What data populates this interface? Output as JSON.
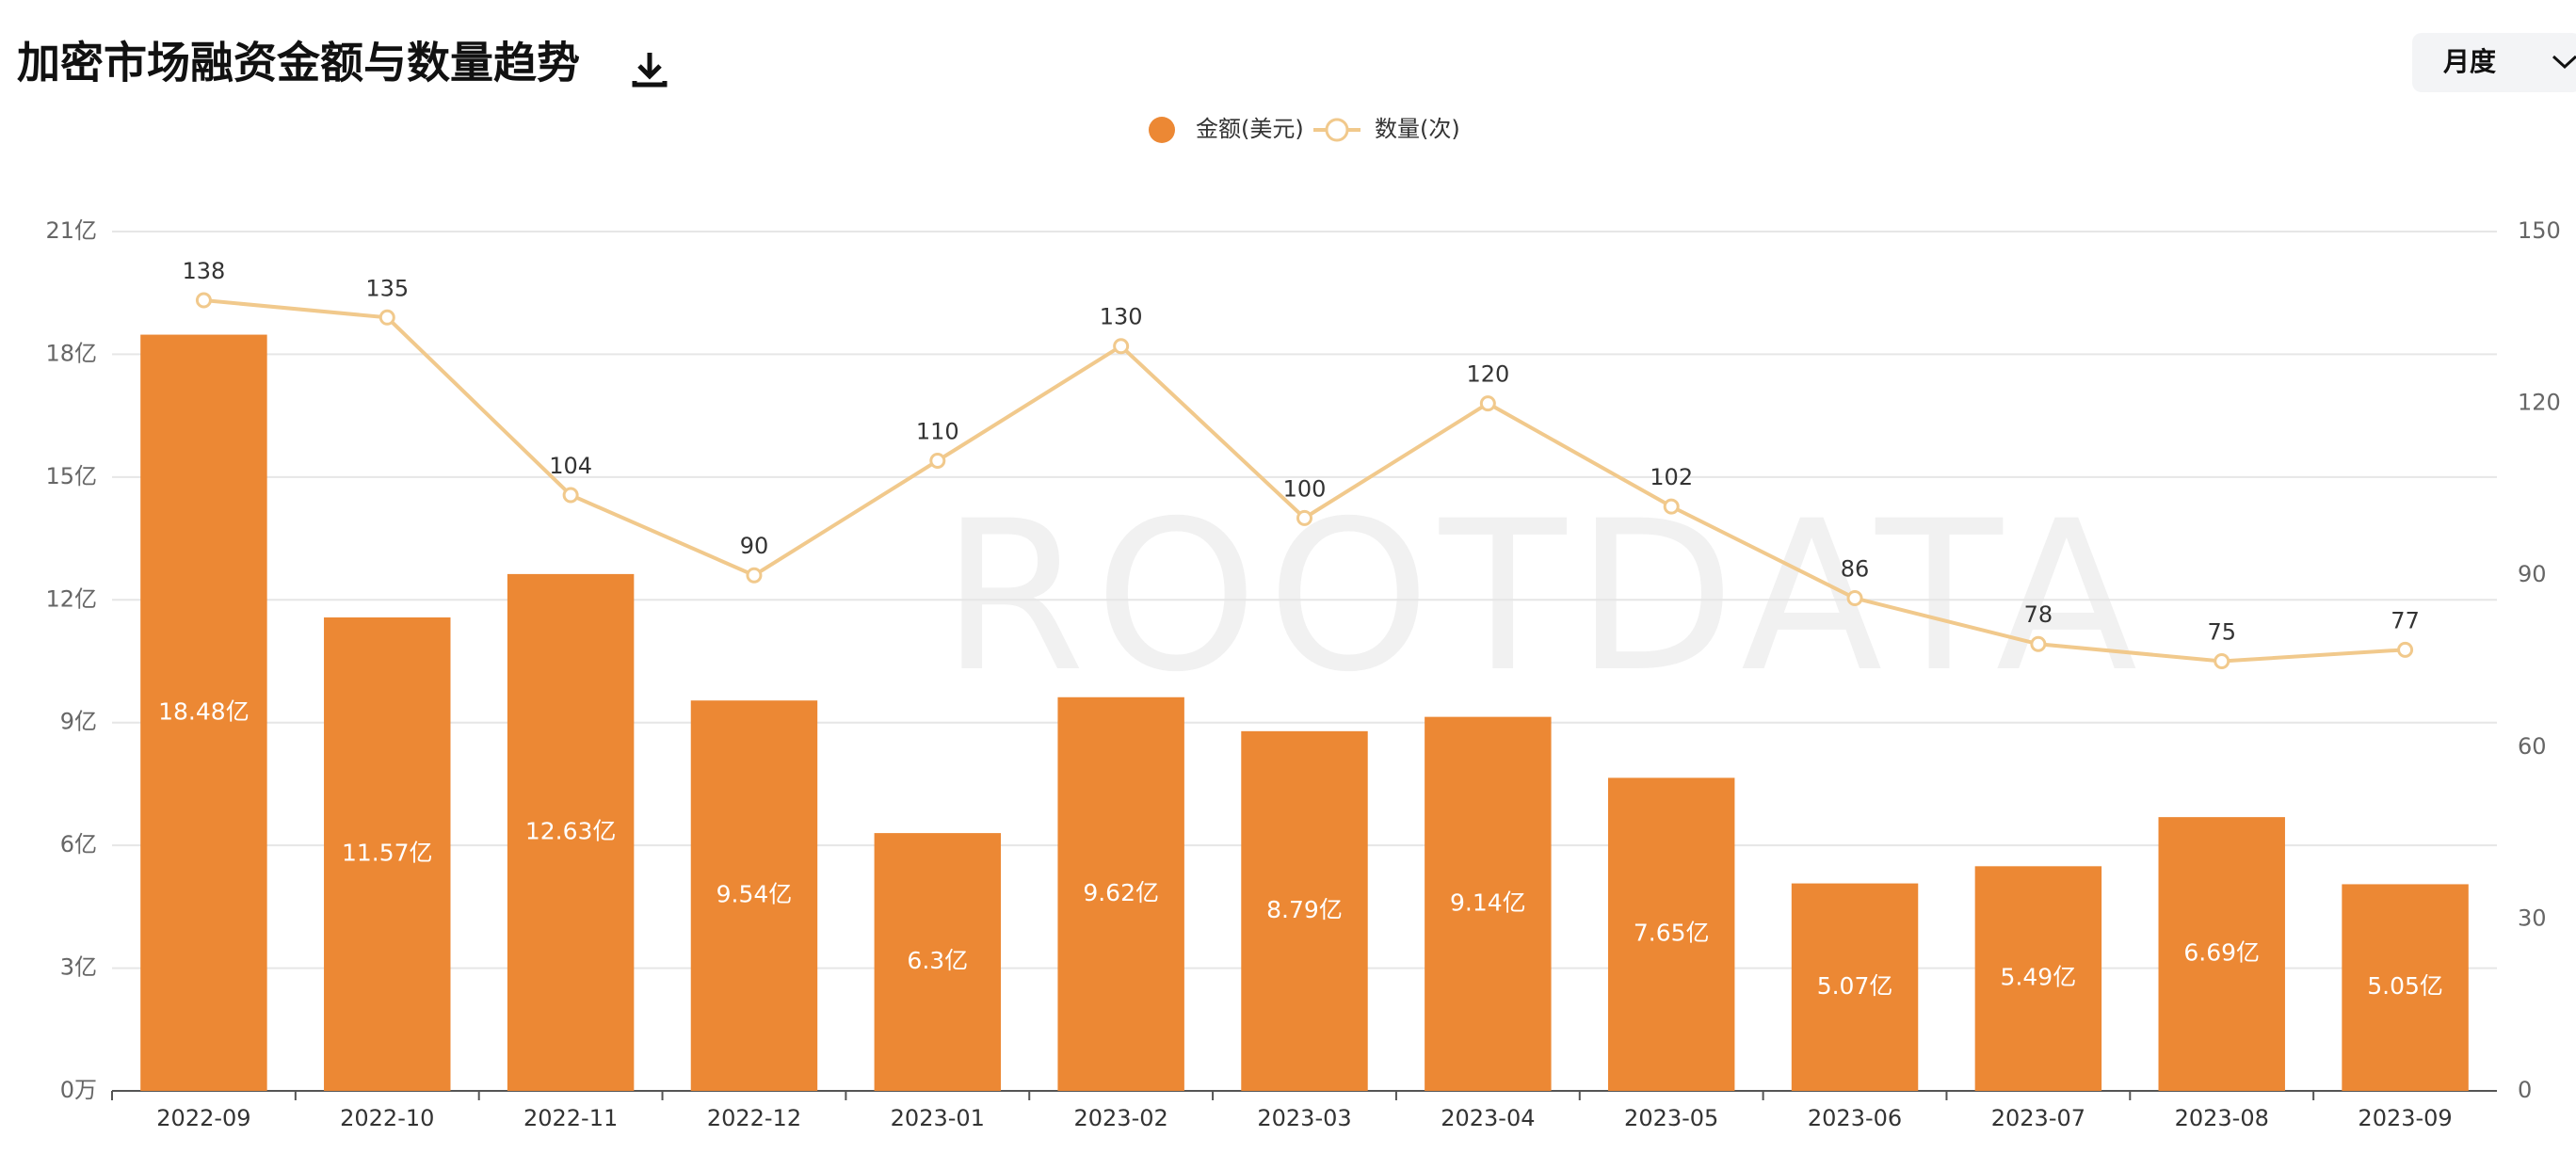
{
  "toolbar": {
    "period": "月度"
  },
  "chart_data": {
    "type": "bar",
    "title": "加密市场融资金额与数量趋势",
    "watermark": "ROOTDATA",
    "categories": [
      "2022-09",
      "2022-10",
      "2022-11",
      "2022-12",
      "2023-01",
      "2023-02",
      "2023-03",
      "2023-04",
      "2023-05",
      "2023-06",
      "2023-07",
      "2023-08",
      "2023-09"
    ],
    "series": [
      {
        "name": "金额(美元)",
        "type": "bar",
        "color": "#ec8834",
        "values": [
          18.48,
          11.57,
          12.63,
          9.54,
          6.3,
          9.62,
          8.79,
          9.14,
          7.65,
          5.07,
          5.49,
          6.69,
          5.05
        ],
        "value_labels": [
          "18.48亿",
          "11.57亿",
          "12.63亿",
          "9.54亿",
          "6.3亿",
          "9.62亿",
          "8.79亿",
          "9.14亿",
          "7.65亿",
          "5.07亿",
          "5.49亿",
          "6.69亿",
          "5.05亿"
        ]
      },
      {
        "name": "数量(次)",
        "type": "line",
        "axis": "y2",
        "color": "#f1c98c",
        "values": [
          138,
          135,
          104,
          90,
          110,
          130,
          100,
          120,
          102,
          86,
          78,
          75,
          77
        ]
      }
    ],
    "ylim": [
      0,
      21
    ],
    "yticks": [
      {
        "value": 0,
        "label": "0万"
      },
      {
        "value": 3,
        "label": "3亿"
      },
      {
        "value": 6,
        "label": "6亿"
      },
      {
        "value": 9,
        "label": "9亿"
      },
      {
        "value": 12,
        "label": "12亿"
      },
      {
        "value": 15,
        "label": "15亿"
      },
      {
        "value": 18,
        "label": "18亿"
      },
      {
        "value": 21,
        "label": "21亿"
      }
    ],
    "y2lim": [
      0,
      150
    ],
    "y2ticks": [
      0,
      30,
      60,
      90,
      120,
      150
    ],
    "grid": true,
    "legend": "top"
  }
}
